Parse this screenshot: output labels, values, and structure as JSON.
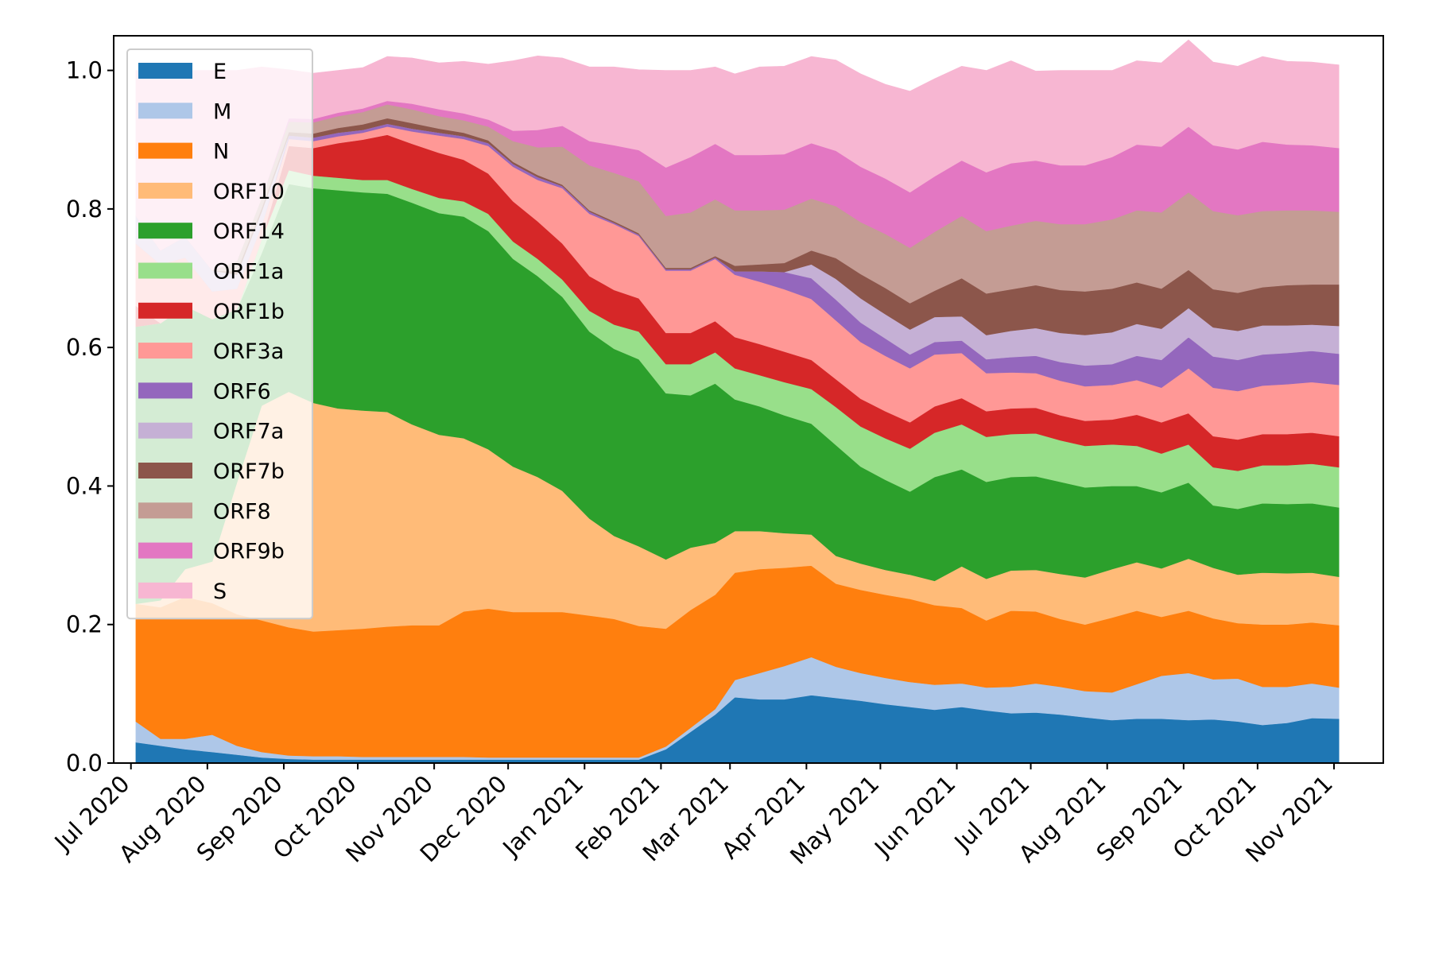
{
  "chart_data": {
    "type": "area",
    "stacked": true,
    "x_type": "date",
    "x_dates": [
      "2020-07-01",
      "2020-08-01",
      "2020-09-01",
      "2020-10-01",
      "2020-11-01",
      "2020-12-01",
      "2021-01-01",
      "2021-02-01",
      "2021-03-01",
      "2021-04-01",
      "2021-05-01",
      "2021-06-01",
      "2021-07-01",
      "2021-08-01",
      "2021-09-01",
      "2021-10-01",
      "2021-11-01"
    ],
    "x_tick_labels": [
      "Jul 2020",
      "Aug 2020",
      "Sep 2020",
      "Oct 2020",
      "Nov 2020",
      "Dec 2020",
      "Jan 2021",
      "Feb 2021",
      "Mar 2021",
      "Apr 2021",
      "May 2021",
      "Jun 2021",
      "Jul 2021",
      "Aug 2021",
      "Sep 2021",
      "Oct 2021",
      "Nov 2021"
    ],
    "y_ticks": [
      "0.0",
      "0.2",
      "0.4",
      "0.6",
      "0.8",
      "1.0"
    ],
    "ylim": [
      0,
      1.05
    ],
    "xlim": [
      "2020-06-24",
      "2021-11-21"
    ],
    "grid": false,
    "legend_position": "upper-left",
    "title": "",
    "xlabel": "",
    "ylabel": "",
    "x": [
      "2020-07-03",
      "2020-07-13",
      "2020-07-23",
      "2020-08-03",
      "2020-08-13",
      "2020-08-23",
      "2020-09-03",
      "2020-09-13",
      "2020-09-23",
      "2020-10-03",
      "2020-10-13",
      "2020-10-23",
      "2020-11-03",
      "2020-11-13",
      "2020-11-23",
      "2020-12-03",
      "2020-12-13",
      "2020-12-23",
      "2021-01-03",
      "2021-01-13",
      "2021-01-23",
      "2021-02-03",
      "2021-02-13",
      "2021-02-23",
      "2021-03-03",
      "2021-03-13",
      "2021-03-23",
      "2021-04-03",
      "2021-04-13",
      "2021-04-23",
      "2021-05-03",
      "2021-05-13",
      "2021-05-23",
      "2021-06-03",
      "2021-06-13",
      "2021-06-23",
      "2021-07-03",
      "2021-07-13",
      "2021-07-23",
      "2021-08-03",
      "2021-08-13",
      "2021-08-23",
      "2021-09-03",
      "2021-09-13",
      "2021-09-23",
      "2021-10-03",
      "2021-10-13",
      "2021-10-23",
      "2021-11-03"
    ],
    "series": [
      {
        "name": "E",
        "color": "#1f77b4",
        "values": [
          0.03,
          0.025,
          0.02,
          0.016,
          0.012,
          0.008,
          0.006,
          0.005,
          0.005,
          0.005,
          0.005,
          0.005,
          0.005,
          0.005,
          0.005,
          0.005,
          0.005,
          0.005,
          0.005,
          0.005,
          0.005,
          0.02,
          0.045,
          0.07,
          0.095,
          0.092,
          0.092,
          0.098,
          0.094,
          0.09,
          0.085,
          0.081,
          0.077,
          0.081,
          0.076,
          0.072,
          0.073,
          0.07,
          0.066,
          0.062,
          0.064,
          0.064,
          0.062,
          0.063,
          0.06,
          0.055,
          0.058,
          0.065,
          0.064
        ]
      },
      {
        "name": "M",
        "color": "#aec7e8",
        "values": [
          0.03,
          0.01,
          0.015,
          0.025,
          0.013,
          0.008,
          0.005,
          0.005,
          0.005,
          0.004,
          0.004,
          0.004,
          0.004,
          0.004,
          0.003,
          0.003,
          0.003,
          0.003,
          0.003,
          0.003,
          0.003,
          0.004,
          0.006,
          0.008,
          0.025,
          0.038,
          0.048,
          0.055,
          0.045,
          0.04,
          0.038,
          0.036,
          0.036,
          0.034,
          0.033,
          0.038,
          0.042,
          0.04,
          0.038,
          0.04,
          0.05,
          0.062,
          0.068,
          0.058,
          0.062,
          0.055,
          0.052,
          0.05,
          0.045
        ]
      },
      {
        "name": "N",
        "color": "#ff7f0e",
        "values": [
          0.17,
          0.19,
          0.205,
          0.19,
          0.19,
          0.19,
          0.185,
          0.18,
          0.182,
          0.185,
          0.188,
          0.19,
          0.19,
          0.21,
          0.215,
          0.21,
          0.21,
          0.21,
          0.205,
          0.2,
          0.19,
          0.17,
          0.17,
          0.165,
          0.155,
          0.15,
          0.142,
          0.132,
          0.12,
          0.12,
          0.12,
          0.12,
          0.115,
          0.109,
          0.097,
          0.11,
          0.104,
          0.098,
          0.096,
          0.108,
          0.106,
          0.085,
          0.09,
          0.088,
          0.08,
          0.09,
          0.09,
          0.088,
          0.09
        ]
      },
      {
        "name": "ORF10",
        "color": "#ffbb78",
        "values": [
          0.0,
          0.01,
          0.04,
          0.06,
          0.19,
          0.31,
          0.34,
          0.33,
          0.32,
          0.315,
          0.31,
          0.29,
          0.275,
          0.25,
          0.23,
          0.21,
          0.195,
          0.175,
          0.14,
          0.12,
          0.115,
          0.1,
          0.09,
          0.075,
          0.06,
          0.055,
          0.05,
          0.045,
          0.04,
          0.038,
          0.036,
          0.035,
          0.035,
          0.06,
          0.06,
          0.058,
          0.06,
          0.065,
          0.068,
          0.07,
          0.07,
          0.07,
          0.075,
          0.073,
          0.07,
          0.075,
          0.074,
          0.072,
          0.07
        ]
      },
      {
        "name": "ORF14",
        "color": "#2ca02c",
        "values": [
          0.4,
          0.4,
          0.38,
          0.35,
          0.25,
          0.22,
          0.3,
          0.31,
          0.315,
          0.315,
          0.315,
          0.32,
          0.32,
          0.32,
          0.315,
          0.3,
          0.29,
          0.28,
          0.27,
          0.27,
          0.27,
          0.24,
          0.22,
          0.23,
          0.19,
          0.18,
          0.17,
          0.16,
          0.16,
          0.14,
          0.13,
          0.12,
          0.15,
          0.14,
          0.14,
          0.135,
          0.135,
          0.133,
          0.13,
          0.12,
          0.11,
          0.11,
          0.11,
          0.09,
          0.095,
          0.1,
          0.1,
          0.1,
          0.1
        ]
      },
      {
        "name": "ORF1a",
        "color": "#98df8a",
        "values": [
          0.0,
          0.0,
          0.0,
          0.0,
          0.0,
          0.02,
          0.02,
          0.018,
          0.018,
          0.018,
          0.02,
          0.02,
          0.022,
          0.022,
          0.025,
          0.025,
          0.025,
          0.025,
          0.03,
          0.035,
          0.04,
          0.042,
          0.045,
          0.045,
          0.045,
          0.045,
          0.048,
          0.05,
          0.055,
          0.058,
          0.06,
          0.062,
          0.064,
          0.065,
          0.065,
          0.062,
          0.062,
          0.06,
          0.06,
          0.06,
          0.058,
          0.056,
          0.055,
          0.055,
          0.055,
          0.055,
          0.056,
          0.057,
          0.058
        ]
      },
      {
        "name": "ORF1b",
        "color": "#d62728",
        "values": [
          0.03,
          0.0,
          0.0,
          0.0,
          0.0,
          0.0,
          0.035,
          0.04,
          0.05,
          0.058,
          0.065,
          0.065,
          0.065,
          0.06,
          0.058,
          0.058,
          0.054,
          0.052,
          0.05,
          0.05,
          0.048,
          0.045,
          0.045,
          0.045,
          0.045,
          0.045,
          0.044,
          0.042,
          0.04,
          0.04,
          0.039,
          0.038,
          0.038,
          0.038,
          0.037,
          0.037,
          0.037,
          0.036,
          0.036,
          0.036,
          0.045,
          0.045,
          0.045,
          0.045,
          0.045,
          0.045,
          0.045,
          0.045,
          0.045
        ]
      },
      {
        "name": "ORF3a",
        "color": "#ff9896",
        "values": [
          0.09,
          0.085,
          0.07,
          0.04,
          0.03,
          0.02,
          0.01,
          0.01,
          0.01,
          0.01,
          0.012,
          0.018,
          0.025,
          0.03,
          0.04,
          0.05,
          0.06,
          0.08,
          0.09,
          0.095,
          0.09,
          0.09,
          0.09,
          0.09,
          0.09,
          0.09,
          0.09,
          0.088,
          0.085,
          0.082,
          0.08,
          0.078,
          0.075,
          0.065,
          0.055,
          0.052,
          0.05,
          0.05,
          0.05,
          0.05,
          0.05,
          0.05,
          0.065,
          0.07,
          0.07,
          0.07,
          0.072,
          0.073,
          0.074
        ]
      },
      {
        "name": "ORF6",
        "color": "#9467bd",
        "values": [
          0.0,
          0.0,
          0.0,
          0.0,
          0.0,
          0.0,
          0.005,
          0.005,
          0.005,
          0.004,
          0.004,
          0.004,
          0.004,
          0.004,
          0.004,
          0.004,
          0.004,
          0.003,
          0.003,
          0.002,
          0.002,
          0.002,
          0.002,
          0.002,
          0.005,
          0.015,
          0.025,
          0.03,
          0.03,
          0.028,
          0.025,
          0.02,
          0.018,
          0.018,
          0.02,
          0.022,
          0.025,
          0.027,
          0.03,
          0.03,
          0.035,
          0.04,
          0.045,
          0.045,
          0.045,
          0.045,
          0.045,
          0.045,
          0.045
        ]
      },
      {
        "name": "ORF7a",
        "color": "#c5b0d5",
        "values": [
          0.04,
          0.02,
          0.03,
          0.03,
          0.02,
          0.02,
          0.0,
          0.0,
          0.0,
          0.0,
          0.0,
          0.0,
          0.0,
          0.0,
          0.0,
          0.0,
          0.0,
          0.0,
          0.0,
          0.0,
          0.0,
          0.0,
          0.0,
          0.0,
          0.0,
          0.0,
          0.0,
          0.02,
          0.03,
          0.035,
          0.035,
          0.036,
          0.036,
          0.035,
          0.035,
          0.038,
          0.04,
          0.042,
          0.044,
          0.046,
          0.046,
          0.045,
          0.042,
          0.042,
          0.042,
          0.042,
          0.04,
          0.038,
          0.04
        ]
      },
      {
        "name": "ORF7b",
        "color": "#8c564b",
        "values": [
          0.0,
          0.0,
          0.0,
          0.0,
          0.005,
          0.005,
          0.005,
          0.006,
          0.007,
          0.008,
          0.008,
          0.008,
          0.006,
          0.005,
          0.004,
          0.003,
          0.003,
          0.002,
          0.002,
          0.002,
          0.002,
          0.002,
          0.002,
          0.002,
          0.008,
          0.01,
          0.013,
          0.02,
          0.03,
          0.035,
          0.038,
          0.038,
          0.038,
          0.055,
          0.06,
          0.06,
          0.062,
          0.062,
          0.063,
          0.063,
          0.06,
          0.058,
          0.055,
          0.055,
          0.055,
          0.055,
          0.058,
          0.058,
          0.06
        ]
      },
      {
        "name": "ORF8",
        "color": "#c49c94",
        "values": [
          0.0,
          0.0,
          0.0,
          0.0,
          0.015,
          0.015,
          0.015,
          0.016,
          0.017,
          0.018,
          0.02,
          0.02,
          0.018,
          0.018,
          0.02,
          0.03,
          0.04,
          0.055,
          0.065,
          0.07,
          0.075,
          0.075,
          0.08,
          0.082,
          0.08,
          0.078,
          0.077,
          0.075,
          0.075,
          0.075,
          0.078,
          0.08,
          0.085,
          0.09,
          0.09,
          0.092,
          0.093,
          0.095,
          0.097,
          0.1,
          0.104,
          0.11,
          0.112,
          0.113,
          0.112,
          0.11,
          0.108,
          0.107,
          0.105
        ]
      },
      {
        "name": "ORF9b",
        "color": "#e377c2",
        "values": [
          0.0,
          0.0,
          0.0,
          0.0,
          0.0,
          0.0,
          0.005,
          0.005,
          0.005,
          0.005,
          0.005,
          0.008,
          0.01,
          0.01,
          0.01,
          0.015,
          0.025,
          0.03,
          0.035,
          0.04,
          0.045,
          0.07,
          0.08,
          0.08,
          0.08,
          0.08,
          0.08,
          0.08,
          0.08,
          0.08,
          0.08,
          0.08,
          0.08,
          0.08,
          0.085,
          0.09,
          0.087,
          0.085,
          0.085,
          0.09,
          0.095,
          0.095,
          0.095,
          0.095,
          0.095,
          0.1,
          0.095,
          0.094,
          0.092
        ]
      },
      {
        "name": "S",
        "color": "#f7b6d2",
        "values": [
          0.21,
          0.26,
          0.24,
          0.289,
          0.275,
          0.189,
          0.07,
          0.066,
          0.061,
          0.059,
          0.064,
          0.066,
          0.067,
          0.075,
          0.08,
          0.101,
          0.107,
          0.098,
          0.107,
          0.113,
          0.116,
          0.14,
          0.125,
          0.111,
          0.117,
          0.127,
          0.127,
          0.125,
          0.131,
          0.134,
          0.136,
          0.146,
          0.141,
          0.136,
          0.147,
          0.148,
          0.129,
          0.137,
          0.137,
          0.125,
          0.121,
          0.121,
          0.125,
          0.12,
          0.12,
          0.123,
          0.12,
          0.12,
          0.12
        ]
      }
    ]
  }
}
